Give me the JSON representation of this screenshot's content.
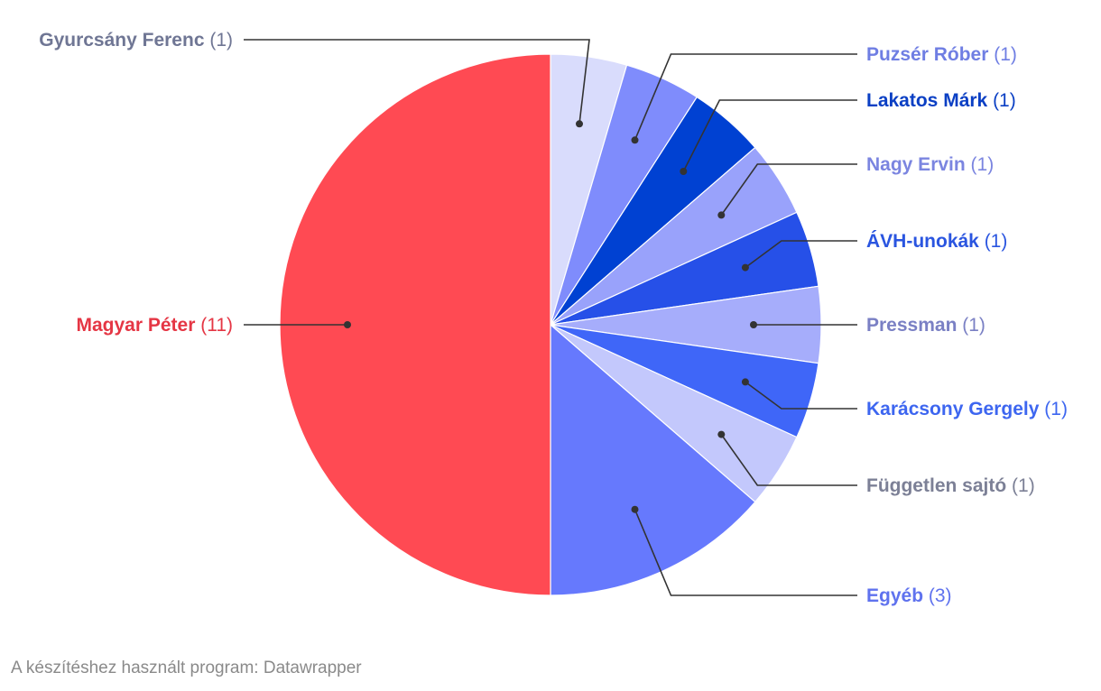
{
  "chart_data": {
    "type": "pie",
    "title": "",
    "slices": [
      {
        "label": "Gyurcsány Ferenc",
        "count_text": "(1)",
        "value": 1,
        "color": "#d9dcfc",
        "text_color": "#6f7694"
      },
      {
        "label": "Puzsér Róber",
        "count_text": "(1)",
        "value": 1,
        "color": "#7f8cfc",
        "text_color": "#6f7ee3"
      },
      {
        "label": "Lakatos Márk",
        "count_text": "(1)",
        "value": 1,
        "color": "#0041d2",
        "text_color": "#0a3fc4"
      },
      {
        "label": "Nagy Ervin",
        "count_text": "(1)",
        "value": 1,
        "color": "#99a2fb",
        "text_color": "#7b85e0"
      },
      {
        "label": "ÁVH-unokák",
        "count_text": "(1)",
        "value": 1,
        "color": "#2650e8",
        "text_color": "#2a55e0"
      },
      {
        "label": "Pressman",
        "count_text": "(1)",
        "value": 1,
        "color": "#a6adfb",
        "text_color": "#7a80c4"
      },
      {
        "label": "Karácsony Gergely",
        "count_text": "(1)",
        "value": 1,
        "color": "#3f66f8",
        "text_color": "#3d66f0"
      },
      {
        "label": "Független sajtó",
        "count_text": "(1)",
        "value": 1,
        "color": "#c3c8fc",
        "text_color": "#7c8096"
      },
      {
        "label": "Egyéb",
        "count_text": "(3)",
        "value": 3,
        "color": "#6679fd",
        "text_color": "#5f72ee"
      },
      {
        "label": "Magyar Péter",
        "count_text": "(11)",
        "value": 11,
        "color": "#ff4a53",
        "text_color": "#e53644"
      }
    ]
  },
  "footer": {
    "text": "A készítéshez használt program: Datawrapper"
  }
}
